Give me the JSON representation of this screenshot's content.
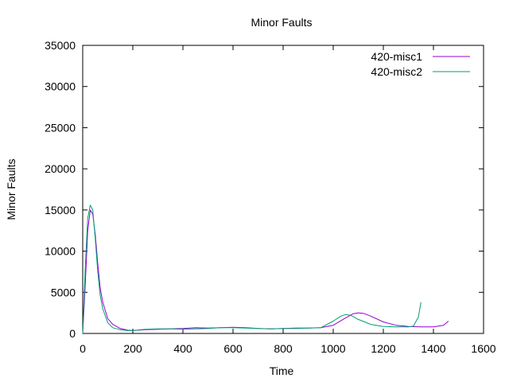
{
  "chart_data": {
    "type": "line",
    "title": "Minor Faults",
    "xlabel": "Time",
    "ylabel": "Minor Faults",
    "xlim": [
      0,
      1600
    ],
    "ylim": [
      0,
      35000
    ],
    "xticks": [
      0,
      200,
      400,
      600,
      800,
      1000,
      1200,
      1400,
      1600
    ],
    "yticks": [
      0,
      5000,
      10000,
      15000,
      20000,
      25000,
      30000,
      35000
    ],
    "grid": false,
    "legend_position": "top-right",
    "series": [
      {
        "name": "420-misc1",
        "color": "#9400d3",
        "x": [
          0,
          10,
          20,
          30,
          40,
          50,
          60,
          70,
          80,
          100,
          120,
          150,
          180,
          200,
          250,
          300,
          350,
          400,
          450,
          500,
          550,
          600,
          650,
          700,
          750,
          800,
          850,
          900,
          950,
          1000,
          1050,
          1080,
          1100,
          1120,
          1150,
          1200,
          1250,
          1300,
          1350,
          1400,
          1440,
          1460
        ],
        "y": [
          0,
          6000,
          12500,
          15000,
          14500,
          12000,
          8500,
          5500,
          3800,
          1800,
          1100,
          600,
          400,
          350,
          450,
          500,
          550,
          600,
          700,
          650,
          700,
          750,
          700,
          600,
          550,
          600,
          650,
          650,
          700,
          1000,
          1900,
          2400,
          2500,
          2450,
          2100,
          1400,
          1000,
          850,
          800,
          800,
          1000,
          1500
        ]
      },
      {
        "name": "420-misc2",
        "color": "#009e73",
        "x": [
          0,
          10,
          20,
          30,
          40,
          50,
          60,
          70,
          80,
          100,
          120,
          150,
          180,
          200,
          250,
          300,
          350,
          400,
          450,
          500,
          550,
          600,
          650,
          700,
          750,
          800,
          850,
          900,
          950,
          1000,
          1030,
          1050,
          1070,
          1100,
          1150,
          1200,
          1250,
          1300,
          1320,
          1340,
          1350
        ],
        "y": [
          0,
          8000,
          14000,
          15600,
          15000,
          11500,
          7500,
          4600,
          3000,
          1300,
          700,
          450,
          350,
          350,
          500,
          550,
          550,
          500,
          550,
          600,
          700,
          700,
          650,
          600,
          550,
          600,
          600,
          650,
          700,
          1500,
          2100,
          2300,
          2200,
          1700,
          1100,
          850,
          800,
          800,
          900,
          2000,
          3800
        ]
      }
    ]
  }
}
